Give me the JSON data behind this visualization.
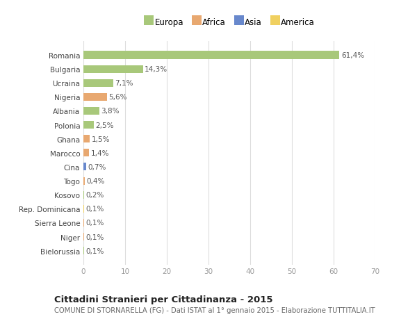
{
  "countries": [
    "Romania",
    "Bulgaria",
    "Ucraina",
    "Nigeria",
    "Albania",
    "Polonia",
    "Ghana",
    "Marocco",
    "Cina",
    "Togo",
    "Kosovo",
    "Rep. Dominicana",
    "Sierra Leone",
    "Niger",
    "Bielorussia"
  ],
  "values": [
    61.4,
    14.3,
    7.1,
    5.6,
    3.8,
    2.5,
    1.5,
    1.4,
    0.7,
    0.4,
    0.2,
    0.1,
    0.1,
    0.1,
    0.1
  ],
  "labels": [
    "61,4%",
    "14,3%",
    "7,1%",
    "5,6%",
    "3,8%",
    "2,5%",
    "1,5%",
    "1,4%",
    "0,7%",
    "0,4%",
    "0,2%",
    "0,1%",
    "0,1%",
    "0,1%",
    "0,1%"
  ],
  "continents": [
    "Europa",
    "Europa",
    "Europa",
    "Africa",
    "Europa",
    "Europa",
    "Africa",
    "Africa",
    "Asia",
    "Africa",
    "Europa",
    "America",
    "Africa",
    "Africa",
    "Europa"
  ],
  "continent_colors": {
    "Europa": "#a8c87a",
    "Africa": "#e8a870",
    "Asia": "#6888cc",
    "America": "#f0d060"
  },
  "xlim": [
    0,
    70
  ],
  "xticks": [
    0,
    10,
    20,
    30,
    40,
    50,
    60,
    70
  ],
  "title": "Cittadini Stranieri per Cittadinanza - 2015",
  "subtitle": "COMUNE DI STORNARELLA (FG) - Dati ISTAT al 1° gennaio 2015 - Elaborazione TUTTITALIA.IT",
  "bg_color": "#ffffff",
  "bar_height": 0.55,
  "grid_color": "#e0e0e0",
  "figsize": [
    6.0,
    4.6
  ],
  "dpi": 100,
  "legend_order": [
    "Europa",
    "Africa",
    "Asia",
    "America"
  ]
}
